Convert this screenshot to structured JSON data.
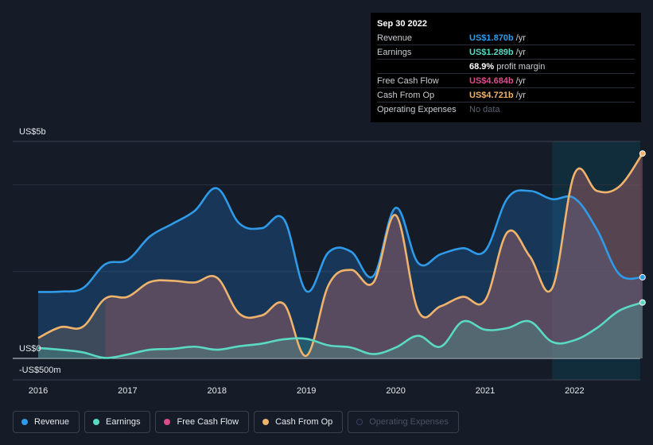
{
  "tooltip": {
    "date": "Sep 30 2022",
    "rows": [
      {
        "label": "Revenue",
        "value": "US$1.870b",
        "unit": "/yr",
        "color": "#2f9be8"
      },
      {
        "label": "Earnings",
        "value": "US$1.289b",
        "unit": "/yr",
        "color": "#5ad9c3"
      },
      {
        "label": "",
        "value": "68.9%",
        "unit": "profit margin",
        "color": "#ffffff"
      },
      {
        "label": "Free Cash Flow",
        "value": "US$4.684b",
        "unit": "/yr",
        "color": "#dc4c8c"
      },
      {
        "label": "Cash From Op",
        "value": "US$4.721b",
        "unit": "/yr",
        "color": "#f0b36c"
      },
      {
        "label": "Operating Expenses",
        "value": "No data",
        "unit": "",
        "color": "#5c6270"
      }
    ]
  },
  "legend": [
    {
      "label": "Revenue",
      "color": "#2f9be8"
    },
    {
      "label": "Earnings",
      "color": "#5ad9c3"
    },
    {
      "label": "Free Cash Flow",
      "color": "#dc4c8c"
    },
    {
      "label": "Cash From Op",
      "color": "#f0b36c"
    },
    {
      "label": "Operating Expenses",
      "color": "#3a3f6a"
    }
  ],
  "chart_data": {
    "type": "area",
    "y_axis_labels": {
      "top": "US$5b",
      "zero": "US$0",
      "bottom": "-US$500m"
    },
    "ylim": [
      -500,
      5000
    ],
    "x_tick_labels": [
      "2016",
      "2017",
      "2018",
      "2019",
      "2020",
      "2021",
      "2022"
    ],
    "x_ticks": [
      2016,
      2017,
      2018,
      2019,
      2020,
      2021,
      2022
    ],
    "xlim": [
      2015.7,
      2022.76
    ],
    "highlight_start": 2021.75,
    "series": [
      {
        "name": "Revenue",
        "color": "#2f9be8",
        "x": [
          2016.0,
          2016.25,
          2016.5,
          2016.75,
          2017.0,
          2017.25,
          2017.5,
          2017.75,
          2018.0,
          2018.25,
          2018.5,
          2018.75,
          2019.0,
          2019.25,
          2019.5,
          2019.75,
          2020.0,
          2020.25,
          2020.5,
          2020.75,
          2021.0,
          2021.25,
          2021.5,
          2021.75,
          2022.0,
          2022.25,
          2022.5,
          2022.76
        ],
        "values": [
          1530,
          1540,
          1620,
          2170,
          2270,
          2810,
          3100,
          3400,
          3920,
          3110,
          3000,
          3200,
          1550,
          2450,
          2460,
          1900,
          3470,
          2200,
          2400,
          2540,
          2480,
          3690,
          3860,
          3670,
          3690,
          2970,
          1940,
          1870
        ]
      },
      {
        "name": "Earnings",
        "color": "#5ad9c3",
        "x": [
          2016.0,
          2016.25,
          2016.5,
          2016.75,
          2017.0,
          2017.25,
          2017.5,
          2017.75,
          2018.0,
          2018.25,
          2018.5,
          2018.75,
          2019.0,
          2019.25,
          2019.5,
          2019.75,
          2020.0,
          2020.25,
          2020.5,
          2020.75,
          2021.0,
          2021.25,
          2021.5,
          2021.75,
          2022.0,
          2022.25,
          2022.5,
          2022.76
        ],
        "values": [
          240,
          200,
          140,
          10,
          90,
          200,
          220,
          270,
          200,
          280,
          340,
          440,
          450,
          300,
          250,
          100,
          250,
          520,
          270,
          850,
          660,
          700,
          850,
          380,
          420,
          700,
          1100,
          1289
        ]
      },
      {
        "name": "Free Cash Flow",
        "color": "#dc4c8c",
        "x": [
          2016.75,
          2017.0,
          2017.25,
          2017.5,
          2017.75,
          2018.0,
          2018.25,
          2018.5,
          2018.75,
          2019.0,
          2019.25,
          2019.5,
          2019.75,
          2020.0,
          2020.25,
          2020.5,
          2020.75,
          2021.0,
          2021.25,
          2021.5,
          2021.75,
          2022.0,
          2022.25,
          2022.5,
          2022.76
        ],
        "values": [
          1380,
          1420,
          1750,
          1780,
          1740,
          1860,
          1030,
          990,
          1250,
          60,
          1700,
          2040,
          1750,
          3300,
          1100,
          1200,
          1420,
          1340,
          2910,
          2350,
          1590,
          4260,
          3860,
          3960,
          4684
        ]
      },
      {
        "name": "Cash From Op",
        "color": "#f0b36c",
        "x": [
          2016.0,
          2016.25,
          2016.5,
          2016.75,
          2017.0,
          2017.25,
          2017.5,
          2017.75,
          2018.0,
          2018.25,
          2018.5,
          2018.75,
          2019.0,
          2019.25,
          2019.5,
          2019.75,
          2020.0,
          2020.25,
          2020.5,
          2020.75,
          2021.0,
          2021.25,
          2021.5,
          2021.75,
          2022.0,
          2022.25,
          2022.5,
          2022.76
        ],
        "values": [
          470,
          720,
          730,
          1380,
          1420,
          1760,
          1790,
          1750,
          1860,
          1030,
          990,
          1250,
          60,
          1700,
          2040,
          1750,
          3300,
          1100,
          1200,
          1420,
          1340,
          2910,
          2350,
          1620,
          4260,
          3860,
          3960,
          4721
        ]
      }
    ]
  }
}
